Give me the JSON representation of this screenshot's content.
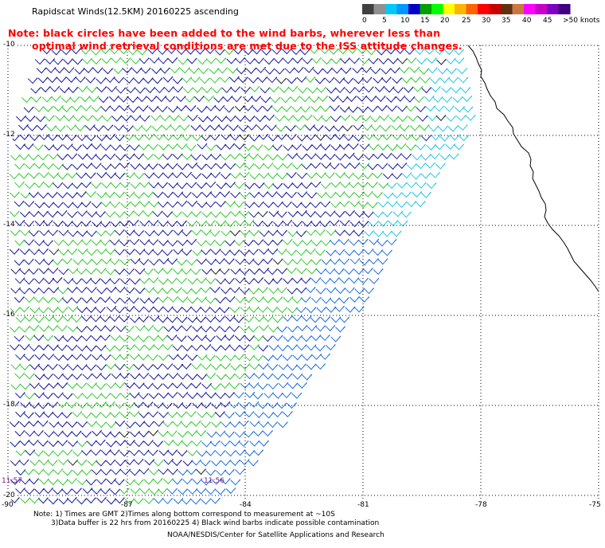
{
  "header": {
    "title": "Rapidscat Winds(12.5KM) 20160225 ascending",
    "note_line1": "Note: black circles have been added to the wind barbs, wherever less than",
    "note_line2": "optimal wind retrieval conditions are met due to the ISS attitude changes."
  },
  "legend": {
    "labels": [
      "0",
      "5",
      "10",
      "15",
      "20",
      "25",
      "30",
      "35",
      "40",
      "45",
      ">50 knots"
    ],
    "colors": [
      "#404040",
      "#909090",
      "#00c8ff",
      "#0096ff",
      "#0000c8",
      "#00a000",
      "#00ff00",
      "#ffff00",
      "#ffb400",
      "#ff6400",
      "#ff0000",
      "#c80000",
      "#603010",
      "#c87840",
      "#ff00ff",
      "#c800c8",
      "#8000c0",
      "#400080"
    ]
  },
  "map": {
    "lat_labels": [
      "-10",
      "-12",
      "-14",
      "-16",
      "-18",
      "-20"
    ],
    "lon_labels": [
      "-90",
      "-87",
      "-84",
      "-81",
      "-78",
      "-75"
    ],
    "time_labels": [
      "11:57",
      "11:56"
    ],
    "colors": {
      "green": "#33cc33",
      "darkblue": "#1a1aa0",
      "blue": "#1f6fe0",
      "cyan": "#22c8e8",
      "contam": "#222222",
      "coast": "#000000",
      "grid": "#000000"
    }
  },
  "footer": {
    "line1": "Note: 1) Times are GMT 2)Times along bottom correspond to measurement at ~10S",
    "line2": "3)Data buffer is 22 hrs from 20160225 4) Black wind barbs indicate possible contamination",
    "line3": "NOAA/NESDIS/Center for Satellite Applications and Research"
  }
}
